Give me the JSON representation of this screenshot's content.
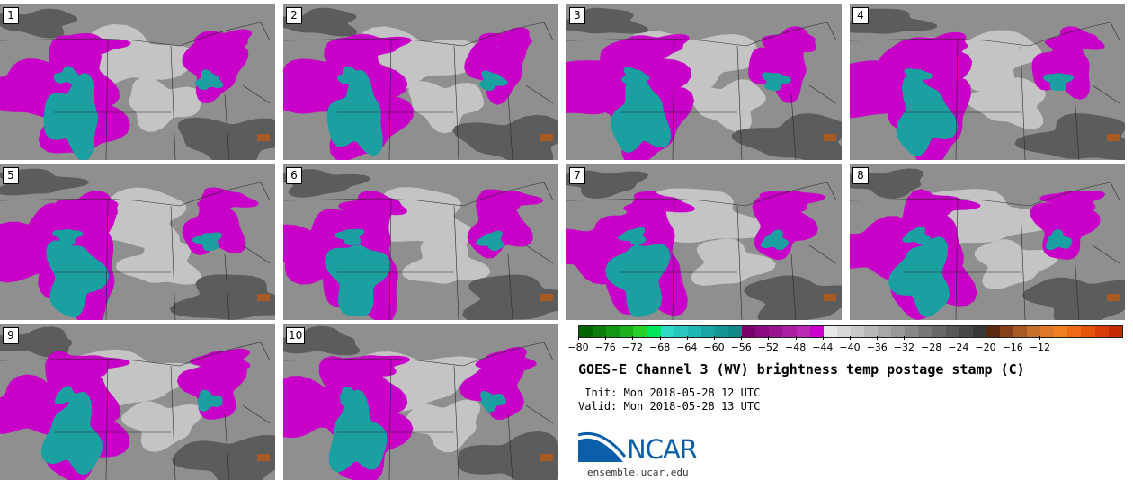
{
  "panels": [
    {
      "label": "1"
    },
    {
      "label": "2"
    },
    {
      "label": "3"
    },
    {
      "label": "4"
    },
    {
      "label": "5"
    },
    {
      "label": "6"
    },
    {
      "label": "7"
    },
    {
      "label": "8"
    },
    {
      "label": "9"
    },
    {
      "label": "10"
    }
  ],
  "colorbar": {
    "tick_labels": [
      "−80",
      "−76",
      "−72",
      "−68",
      "−64",
      "−60",
      "−56",
      "−52",
      "−48",
      "−44",
      "−40",
      "−36",
      "−32",
      "−28",
      "−24",
      "−20",
      "−16",
      "−12"
    ],
    "colors": [
      "#006400",
      "#0a7d0a",
      "#139613",
      "#1cb01c",
      "#26d026",
      "#00e65a",
      "#2ed8c6",
      "#27c7c0",
      "#20b6b2",
      "#1aa5a4",
      "#149696",
      "#0e8888",
      "#7a006e",
      "#8a0a80",
      "#9a1490",
      "#ab1ea2",
      "#bb28b4",
      "#cc00cc",
      "#e8e8e8",
      "#d8d8d8",
      "#c8c8c8",
      "#b8b8b8",
      "#a8a8a8",
      "#989898",
      "#888888",
      "#787878",
      "#686868",
      "#585858",
      "#484848",
      "#383838",
      "#5a2a10",
      "#84401a",
      "#a85a24",
      "#c8702c",
      "#e07828",
      "#f08020",
      "#ee6a14",
      "#e4520c",
      "#d83c08",
      "#c42a04"
    ]
  },
  "title": "GOES-E Channel 3 (WV) brightness temp postage stamp (C)",
  "init": " Init: Mon 2018-05-28 12 UTC",
  "valid": "Valid: Mon 2018-05-28 13 UTC",
  "logo": {
    "text": "NCAR",
    "url": "ensemble.ucar.edu"
  },
  "field_colors": {
    "background": "#8f8f8f",
    "light": "#c4c4c4",
    "dark": "#5c5c5c",
    "magenta": "#c800c8",
    "teal": "#1aa0a0",
    "border_lines": "#2a2a2a"
  }
}
